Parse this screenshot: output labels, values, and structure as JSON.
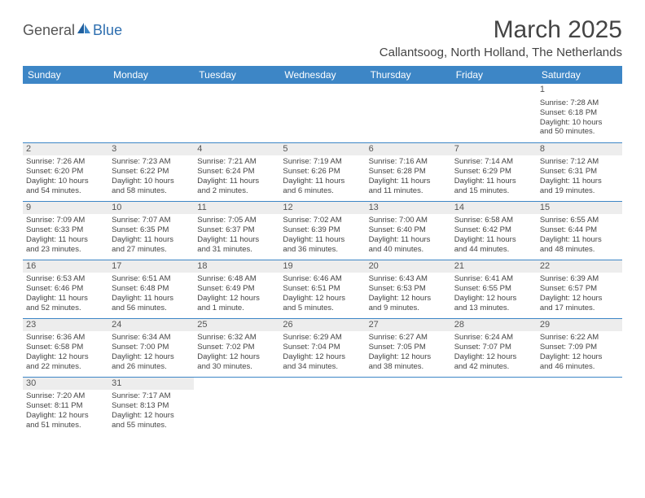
{
  "logo": {
    "general": "General",
    "blue": "Blue"
  },
  "title": "March 2025",
  "location": "Callantsoog, North Holland, The Netherlands",
  "colors": {
    "header_bg": "#3d86c6",
    "header_text": "#ffffff",
    "border": "#3d86c6",
    "daynum_bg": "#ededed",
    "text": "#444444",
    "page_bg": "#ffffff"
  },
  "weekdays": [
    "Sunday",
    "Monday",
    "Tuesday",
    "Wednesday",
    "Thursday",
    "Friday",
    "Saturday"
  ],
  "weeks": [
    [
      null,
      null,
      null,
      null,
      null,
      null,
      {
        "d": "1",
        "sr": "Sunrise: 7:28 AM",
        "ss": "Sunset: 6:18 PM",
        "dl1": "Daylight: 10 hours",
        "dl2": "and 50 minutes.",
        "first": true
      }
    ],
    [
      {
        "d": "2",
        "sr": "Sunrise: 7:26 AM",
        "ss": "Sunset: 6:20 PM",
        "dl1": "Daylight: 10 hours",
        "dl2": "and 54 minutes."
      },
      {
        "d": "3",
        "sr": "Sunrise: 7:23 AM",
        "ss": "Sunset: 6:22 PM",
        "dl1": "Daylight: 10 hours",
        "dl2": "and 58 minutes."
      },
      {
        "d": "4",
        "sr": "Sunrise: 7:21 AM",
        "ss": "Sunset: 6:24 PM",
        "dl1": "Daylight: 11 hours",
        "dl2": "and 2 minutes."
      },
      {
        "d": "5",
        "sr": "Sunrise: 7:19 AM",
        "ss": "Sunset: 6:26 PM",
        "dl1": "Daylight: 11 hours",
        "dl2": "and 6 minutes."
      },
      {
        "d": "6",
        "sr": "Sunrise: 7:16 AM",
        "ss": "Sunset: 6:28 PM",
        "dl1": "Daylight: 11 hours",
        "dl2": "and 11 minutes."
      },
      {
        "d": "7",
        "sr": "Sunrise: 7:14 AM",
        "ss": "Sunset: 6:29 PM",
        "dl1": "Daylight: 11 hours",
        "dl2": "and 15 minutes."
      },
      {
        "d": "8",
        "sr": "Sunrise: 7:12 AM",
        "ss": "Sunset: 6:31 PM",
        "dl1": "Daylight: 11 hours",
        "dl2": "and 19 minutes."
      }
    ],
    [
      {
        "d": "9",
        "sr": "Sunrise: 7:09 AM",
        "ss": "Sunset: 6:33 PM",
        "dl1": "Daylight: 11 hours",
        "dl2": "and 23 minutes."
      },
      {
        "d": "10",
        "sr": "Sunrise: 7:07 AM",
        "ss": "Sunset: 6:35 PM",
        "dl1": "Daylight: 11 hours",
        "dl2": "and 27 minutes."
      },
      {
        "d": "11",
        "sr": "Sunrise: 7:05 AM",
        "ss": "Sunset: 6:37 PM",
        "dl1": "Daylight: 11 hours",
        "dl2": "and 31 minutes."
      },
      {
        "d": "12",
        "sr": "Sunrise: 7:02 AM",
        "ss": "Sunset: 6:39 PM",
        "dl1": "Daylight: 11 hours",
        "dl2": "and 36 minutes."
      },
      {
        "d": "13",
        "sr": "Sunrise: 7:00 AM",
        "ss": "Sunset: 6:40 PM",
        "dl1": "Daylight: 11 hours",
        "dl2": "and 40 minutes."
      },
      {
        "d": "14",
        "sr": "Sunrise: 6:58 AM",
        "ss": "Sunset: 6:42 PM",
        "dl1": "Daylight: 11 hours",
        "dl2": "and 44 minutes."
      },
      {
        "d": "15",
        "sr": "Sunrise: 6:55 AM",
        "ss": "Sunset: 6:44 PM",
        "dl1": "Daylight: 11 hours",
        "dl2": "and 48 minutes."
      }
    ],
    [
      {
        "d": "16",
        "sr": "Sunrise: 6:53 AM",
        "ss": "Sunset: 6:46 PM",
        "dl1": "Daylight: 11 hours",
        "dl2": "and 52 minutes."
      },
      {
        "d": "17",
        "sr": "Sunrise: 6:51 AM",
        "ss": "Sunset: 6:48 PM",
        "dl1": "Daylight: 11 hours",
        "dl2": "and 56 minutes."
      },
      {
        "d": "18",
        "sr": "Sunrise: 6:48 AM",
        "ss": "Sunset: 6:49 PM",
        "dl1": "Daylight: 12 hours",
        "dl2": "and 1 minute."
      },
      {
        "d": "19",
        "sr": "Sunrise: 6:46 AM",
        "ss": "Sunset: 6:51 PM",
        "dl1": "Daylight: 12 hours",
        "dl2": "and 5 minutes."
      },
      {
        "d": "20",
        "sr": "Sunrise: 6:43 AM",
        "ss": "Sunset: 6:53 PM",
        "dl1": "Daylight: 12 hours",
        "dl2": "and 9 minutes."
      },
      {
        "d": "21",
        "sr": "Sunrise: 6:41 AM",
        "ss": "Sunset: 6:55 PM",
        "dl1": "Daylight: 12 hours",
        "dl2": "and 13 minutes."
      },
      {
        "d": "22",
        "sr": "Sunrise: 6:39 AM",
        "ss": "Sunset: 6:57 PM",
        "dl1": "Daylight: 12 hours",
        "dl2": "and 17 minutes."
      }
    ],
    [
      {
        "d": "23",
        "sr": "Sunrise: 6:36 AM",
        "ss": "Sunset: 6:58 PM",
        "dl1": "Daylight: 12 hours",
        "dl2": "and 22 minutes."
      },
      {
        "d": "24",
        "sr": "Sunrise: 6:34 AM",
        "ss": "Sunset: 7:00 PM",
        "dl1": "Daylight: 12 hours",
        "dl2": "and 26 minutes."
      },
      {
        "d": "25",
        "sr": "Sunrise: 6:32 AM",
        "ss": "Sunset: 7:02 PM",
        "dl1": "Daylight: 12 hours",
        "dl2": "and 30 minutes."
      },
      {
        "d": "26",
        "sr": "Sunrise: 6:29 AM",
        "ss": "Sunset: 7:04 PM",
        "dl1": "Daylight: 12 hours",
        "dl2": "and 34 minutes."
      },
      {
        "d": "27",
        "sr": "Sunrise: 6:27 AM",
        "ss": "Sunset: 7:05 PM",
        "dl1": "Daylight: 12 hours",
        "dl2": "and 38 minutes."
      },
      {
        "d": "28",
        "sr": "Sunrise: 6:24 AM",
        "ss": "Sunset: 7:07 PM",
        "dl1": "Daylight: 12 hours",
        "dl2": "and 42 minutes."
      },
      {
        "d": "29",
        "sr": "Sunrise: 6:22 AM",
        "ss": "Sunset: 7:09 PM",
        "dl1": "Daylight: 12 hours",
        "dl2": "and 46 minutes."
      }
    ],
    [
      {
        "d": "30",
        "sr": "Sunrise: 7:20 AM",
        "ss": "Sunset: 8:11 PM",
        "dl1": "Daylight: 12 hours",
        "dl2": "and 51 minutes."
      },
      {
        "d": "31",
        "sr": "Sunrise: 7:17 AM",
        "ss": "Sunset: 8:13 PM",
        "dl1": "Daylight: 12 hours",
        "dl2": "and 55 minutes."
      },
      null,
      null,
      null,
      null,
      null
    ]
  ]
}
